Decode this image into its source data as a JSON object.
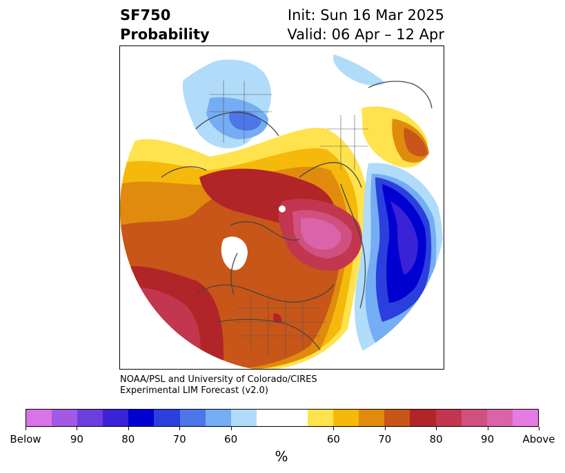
{
  "header": {
    "variable": "SF750",
    "subtitle": "Probability",
    "init": "Init: Sun 16 Mar 2025",
    "valid": "Valid: 06 Apr – 12 Apr"
  },
  "credits": {
    "line1": "NOAA/PSL and University of Colorado/CIRES",
    "line2": "Experimental LIM Forecast (v2.0)"
  },
  "colorbar": {
    "unit": "%",
    "colors": [
      "#d774e8",
      "#a259e3",
      "#6d3ede",
      "#3a22d8",
      "#0000d0",
      "#2a3fdd",
      "#4d76e8",
      "#74adf3",
      "#b0dcfa",
      "#ffffff",
      "#ffffff",
      "#fee34e",
      "#f5b90b",
      "#e08b0e",
      "#c75618",
      "#b12427",
      "#c2364f",
      "#d0507f",
      "#da63a9",
      "#e67be3"
    ],
    "tick_labels": [
      "Below",
      "90",
      "80",
      "70",
      "60",
      "60",
      "70",
      "80",
      "90",
      "Above"
    ]
  },
  "map": {
    "projection": "north-polar-stereographic",
    "legend_palette": {
      "below_light": "#b0dcfa",
      "below_mid": "#74adf3",
      "below_strong": "#2a3fdd",
      "below_max": "#0000d0",
      "above_light": "#fee34e",
      "above_mid": "#f5b90b",
      "above_strong": "#c75618",
      "above_max": "#b12427",
      "above_top": "#da63a9"
    }
  }
}
